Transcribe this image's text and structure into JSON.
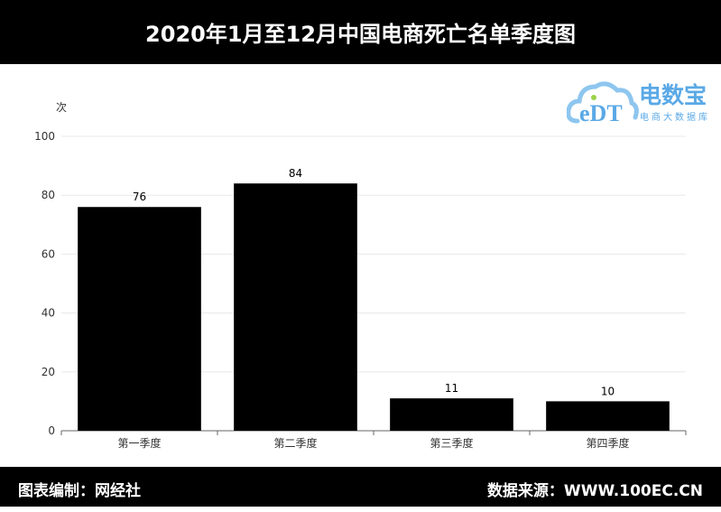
{
  "header": {
    "title": "2020年1月至12月中国电商死亡名单季度图"
  },
  "logo": {
    "mark": "eDT",
    "name": "电数宝",
    "tagline": "电商大数据库",
    "color": "#5aa9e6"
  },
  "footer": {
    "left": "图表编制：网经社",
    "right": "数据来源：WWW.100EC.CN"
  },
  "chart_data": {
    "type": "bar",
    "title": "",
    "xlabel": "",
    "ylabel": "次",
    "ylim": [
      0,
      100
    ],
    "yticks": [
      0,
      20,
      40,
      60,
      80,
      100
    ],
    "grid": true,
    "categories": [
      "第一季度",
      "第二季度",
      "第三季度",
      "第四季度"
    ],
    "values": [
      76,
      84,
      11,
      10
    ],
    "bar_color": "#000000"
  }
}
